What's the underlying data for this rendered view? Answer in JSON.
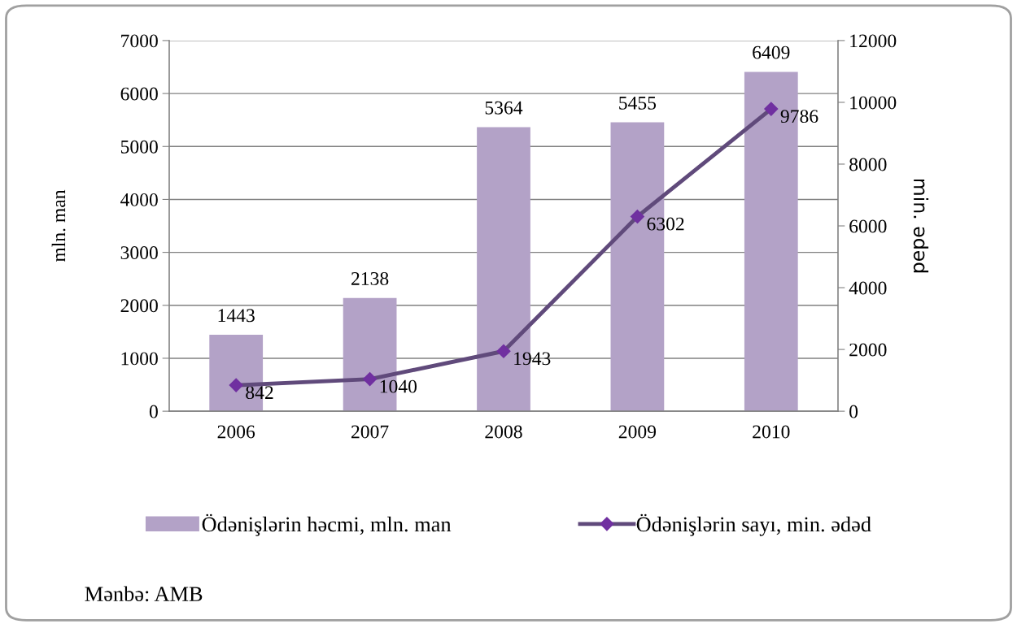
{
  "chart_data": {
    "type": "bar",
    "categories": [
      "2006",
      "2007",
      "2008",
      "2009",
      "2010"
    ],
    "series": [
      {
        "name": "Ödənişlərin həcmi, mln. man",
        "color": "#b3a2c7",
        "values": [
          1443,
          2138,
          5364,
          5455,
          6409
        ]
      },
      {
        "name": "Ödənişlərin sayı, min. ədəd",
        "type": "line",
        "axis": "y2",
        "color": "#604a7b",
        "marker": "diamond",
        "values": [
          842,
          1040,
          1943,
          6302,
          9786
        ]
      }
    ],
    "ylabel": "mln. man",
    "y2label": "min. ədəd",
    "ylim": [
      0,
      7000
    ],
    "yticks": [
      0,
      1000,
      2000,
      3000,
      4000,
      5000,
      6000,
      7000
    ],
    "y2lim": [
      0,
      12000
    ],
    "y2ticks": [
      0,
      2000,
      4000,
      6000,
      8000,
      10000,
      12000
    ],
    "grid": "y",
    "legend": "bottom",
    "data_labels": true,
    "annotations": [
      "Mənbə: AMB"
    ]
  }
}
